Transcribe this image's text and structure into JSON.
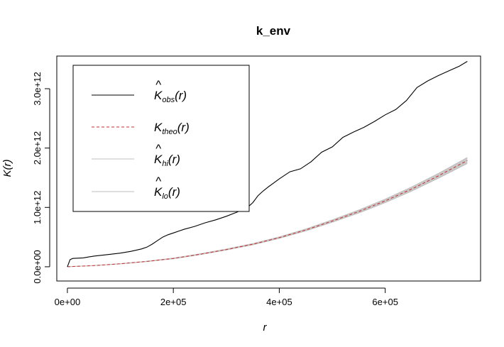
{
  "chart_data": {
    "type": "line",
    "title": "k_env",
    "xlabel": "r",
    "ylabel": "K(r)",
    "xlim": [
      -20000,
      780000
    ],
    "ylim": [
      -240000000000,
      3550000000000
    ],
    "x_ticks": [
      {
        "value": 0,
        "label": "0e+00"
      },
      {
        "value": 200000,
        "label": "2e+05"
      },
      {
        "value": 400000,
        "label": "4e+05"
      },
      {
        "value": 600000,
        "label": "6e+05"
      }
    ],
    "y_ticks": [
      {
        "value": 0,
        "label": "0.0e+00"
      },
      {
        "value": 1000000000000,
        "label": "1.0e+12"
      },
      {
        "value": 2000000000000,
        "label": "2.0e+12"
      },
      {
        "value": 3000000000000,
        "label": "3.0e+12"
      }
    ],
    "legend": {
      "position": "top-left",
      "entries": [
        {
          "base": "K",
          "hat": true,
          "sub": "obs",
          "arg": "(r)",
          "color": "#000000",
          "dash": "solid"
        },
        {
          "base": "K",
          "hat": false,
          "sub": "theo",
          "arg": "(r)",
          "color": "#cc2a2a",
          "dash": "dashed"
        },
        {
          "base": "K",
          "hat": true,
          "sub": "hi",
          "arg": "(r)",
          "color": "#bfbfbf",
          "dash": "solid"
        },
        {
          "base": "K",
          "hat": true,
          "sub": "lo",
          "arg": "(r)",
          "color": "#bfbfbf",
          "dash": "solid"
        }
      ]
    },
    "series": [
      {
        "key": "obs",
        "x": [
          0,
          5000,
          10000,
          30000,
          50000,
          80000,
          100000,
          120000,
          140000,
          150000,
          160000,
          170000,
          180000,
          190000,
          200000,
          220000,
          240000,
          260000,
          280000,
          300000,
          320000,
          340000,
          350000,
          360000,
          370000,
          380000,
          400000,
          420000,
          440000,
          460000,
          480000,
          500000,
          520000,
          540000,
          560000,
          580000,
          600000,
          620000,
          640000,
          660000,
          680000,
          700000,
          720000,
          740000,
          755000
        ],
        "y": [
          0,
          120000000000,
          140000000000,
          150000000000,
          180000000000,
          210000000000,
          230000000000,
          260000000000,
          300000000000,
          330000000000,
          380000000000,
          440000000000,
          500000000000,
          540000000000,
          570000000000,
          630000000000,
          680000000000,
          740000000000,
          790000000000,
          850000000000,
          920000000000,
          1000000000000,
          1080000000000,
          1200000000000,
          1280000000000,
          1350000000000,
          1480000000000,
          1600000000000,
          1650000000000,
          1770000000000,
          1930000000000,
          2020000000000,
          2180000000000,
          2270000000000,
          2350000000000,
          2450000000000,
          2560000000000,
          2650000000000,
          2800000000000,
          3020000000000,
          3130000000000,
          3220000000000,
          3300000000000,
          3380000000000,
          3460000000000
        ]
      },
      {
        "key": "theo",
        "x": [
          0,
          50000,
          100000,
          150000,
          200000,
          250000,
          300000,
          350000,
          400000,
          450000,
          500000,
          550000,
          600000,
          650000,
          700000,
          755000
        ],
        "y": [
          0,
          20000000000,
          50000000000,
          90000000000,
          140000000000,
          210000000000,
          290000000000,
          380000000000,
          490000000000,
          620000000000,
          770000000000,
          930000000000,
          1110000000000,
          1310000000000,
          1530000000000,
          1790000000000
        ]
      },
      {
        "key": "hi",
        "x": [
          0,
          50000,
          100000,
          150000,
          200000,
          250000,
          300000,
          350000,
          400000,
          450000,
          500000,
          550000,
          600000,
          650000,
          700000,
          755000
        ],
        "y": [
          0,
          21000000000,
          52000000000,
          93000000000,
          145000000000,
          217000000000,
          298000000000,
          390000000000,
          502000000000,
          636000000000,
          790000000000,
          955000000000,
          1140000000000,
          1345000000000,
          1570000000000,
          1840000000000
        ]
      },
      {
        "key": "lo",
        "x": [
          0,
          50000,
          100000,
          150000,
          200000,
          250000,
          300000,
          350000,
          400000,
          450000,
          500000,
          550000,
          600000,
          650000,
          700000,
          755000
        ],
        "y": [
          0,
          19000000000,
          48000000000,
          87000000000,
          135000000000,
          203000000000,
          282000000000,
          370000000000,
          478000000000,
          604000000000,
          750000000000,
          905000000000,
          1080000000000,
          1275000000000,
          1490000000000,
          1740000000000
        ]
      }
    ]
  }
}
